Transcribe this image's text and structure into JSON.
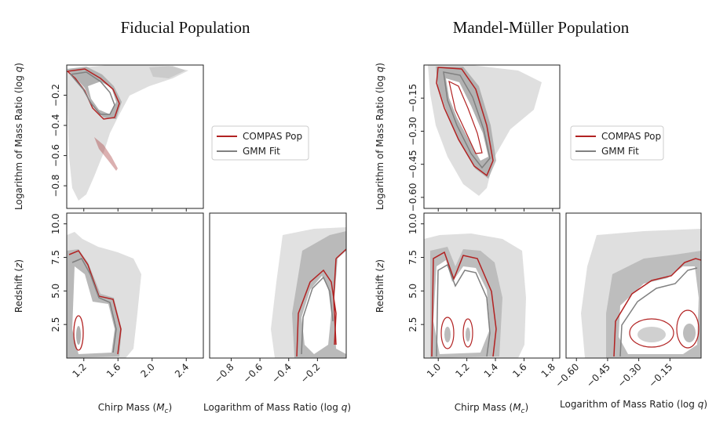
{
  "chart_data": [
    {
      "type": "corner-density",
      "title": "Fiducial Population",
      "legend": [
        {
          "label": "COMPAS Pop",
          "color": "#b22222"
        },
        {
          "label": "GMM Fit",
          "color": "#808080"
        }
      ],
      "panels": [
        {
          "id": "mc-logq",
          "xlabel": "",
          "ylabel": "Logarithm of Mass Ratio (log q)",
          "xlim": [
            1.0,
            2.6
          ],
          "ylim": [
            -0.95,
            0.0
          ],
          "xticks": [
            "1.2",
            "1.6",
            "2.0",
            "2.4"
          ],
          "xtick_values": [
            1.2,
            1.6,
            2.0,
            2.4
          ],
          "show_xticklabels": false,
          "yticks": [
            "−0.2",
            "−0.4",
            "−0.6",
            "−0.8"
          ],
          "ytick_values": [
            -0.2,
            -0.4,
            -0.6,
            -0.8
          ]
        },
        {
          "id": "mc-z",
          "xlabel": "Chirp Mass (Mc)",
          "ylabel": "Redshift (z)",
          "xlim": [
            1.0,
            2.6
          ],
          "ylim": [
            0.0,
            10.8
          ],
          "xticks": [
            "1.2",
            "1.6",
            "2.0",
            "2.4"
          ],
          "xtick_values": [
            1.2,
            1.6,
            2.0,
            2.4
          ],
          "show_xticklabels": true,
          "yticks": [
            "10.0",
            "7.5",
            "5.0",
            "2.5"
          ],
          "ytick_values": [
            10.0,
            7.5,
            5.0,
            2.5
          ]
        },
        {
          "id": "logq-z",
          "xlabel": "Logarithm of Mass Ratio (log q)",
          "ylabel": "",
          "xlim": [
            -0.95,
            0.0
          ],
          "ylim": [
            0.0,
            10.8
          ],
          "xticks": [
            "−0.8",
            "−0.6",
            "−0.4",
            "−0.2"
          ],
          "xtick_values": [
            -0.8,
            -0.6,
            -0.4,
            -0.2
          ],
          "show_xticklabels": true,
          "yticks": [],
          "ytick_values": []
        }
      ]
    },
    {
      "type": "corner-density",
      "title": "Mandel-Müller Population",
      "legend": [
        {
          "label": "COMPAS Pop",
          "color": "#b22222"
        },
        {
          "label": "GMM Fit",
          "color": "#808080"
        }
      ],
      "panels": [
        {
          "id": "mc-logq",
          "xlabel": "",
          "ylabel": "Logarithm of Mass Ratio (log q)",
          "xlim": [
            0.9,
            1.85
          ],
          "ylim": [
            -0.65,
            0.0
          ],
          "xticks": [
            "1.0",
            "1.2",
            "1.4",
            "1.6",
            "1.8"
          ],
          "xtick_values": [
            1.0,
            1.2,
            1.4,
            1.6,
            1.8
          ],
          "show_xticklabels": false,
          "yticks": [
            "−0.15",
            "−0.30",
            "−0.45",
            "−0.60"
          ],
          "ytick_values": [
            -0.15,
            -0.3,
            -0.45,
            -0.6
          ]
        },
        {
          "id": "mc-z",
          "xlabel": "Chirp Mass (Mc)",
          "ylabel": "Redshift (z)",
          "xlim": [
            0.9,
            1.85
          ],
          "ylim": [
            0.0,
            10.8
          ],
          "xticks": [
            "1.0",
            "1.2",
            "1.4",
            "1.6",
            "1.8"
          ],
          "xtick_values": [
            1.0,
            1.2,
            1.4,
            1.6,
            1.8
          ],
          "show_xticklabels": true,
          "yticks": [
            "10.0",
            "7.5",
            "5.0",
            "2.5"
          ],
          "ytick_values": [
            10.0,
            7.5,
            5.0,
            2.5
          ]
        },
        {
          "id": "logq-z",
          "xlabel": "Logarithm of Mass Ratio (log q)",
          "ylabel": "",
          "xlim": [
            -0.65,
            0.0
          ],
          "ylim": [
            0.0,
            10.8
          ],
          "xticks": [
            "−0.60",
            "−0.45",
            "−0.30",
            "−0.15"
          ],
          "xtick_values": [
            -0.6,
            -0.45,
            -0.3,
            -0.15
          ],
          "show_xticklabels": true,
          "yticks": [],
          "ytick_values": []
        }
      ]
    }
  ]
}
